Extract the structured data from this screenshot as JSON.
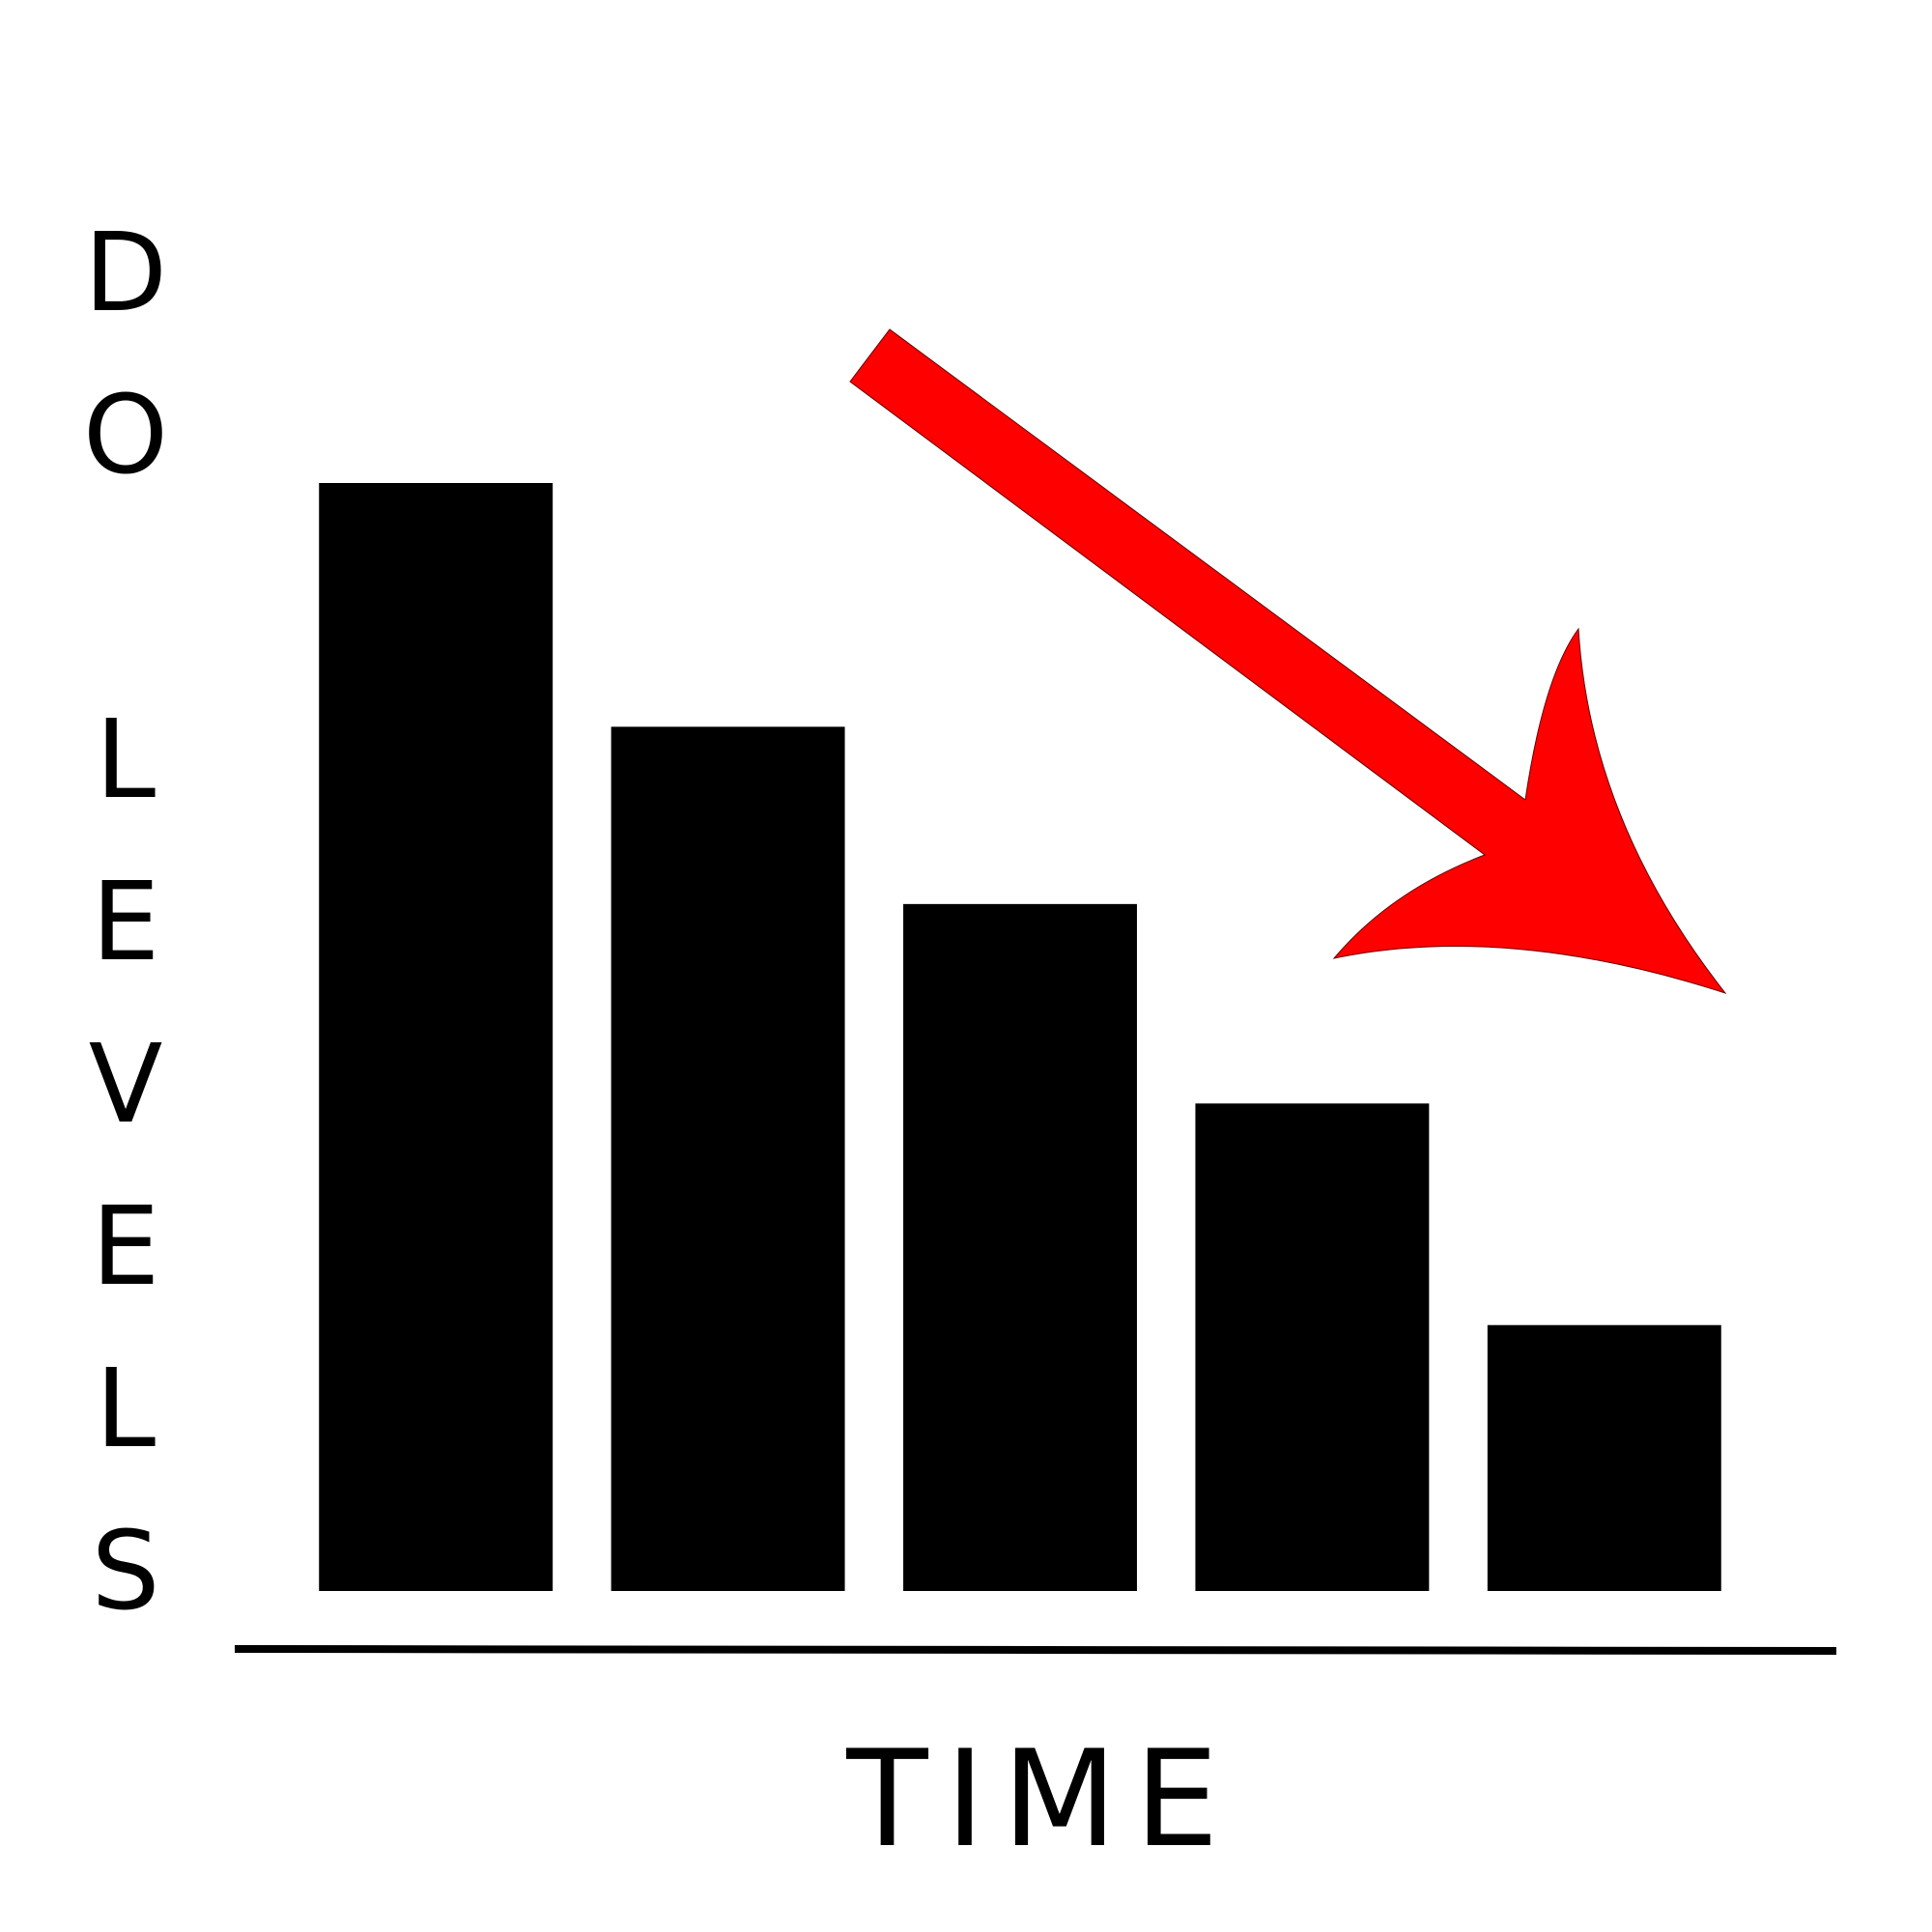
{
  "chart_data": {
    "type": "bar",
    "x_label": "TIME",
    "y_label": "DO LEVELS",
    "categories": [
      null,
      null,
      null,
      null,
      null
    ],
    "values": [
      100,
      78,
      62,
      44,
      24
    ],
    "color": "#000000",
    "ylim": [
      0,
      100
    ],
    "grid": false
  }
}
